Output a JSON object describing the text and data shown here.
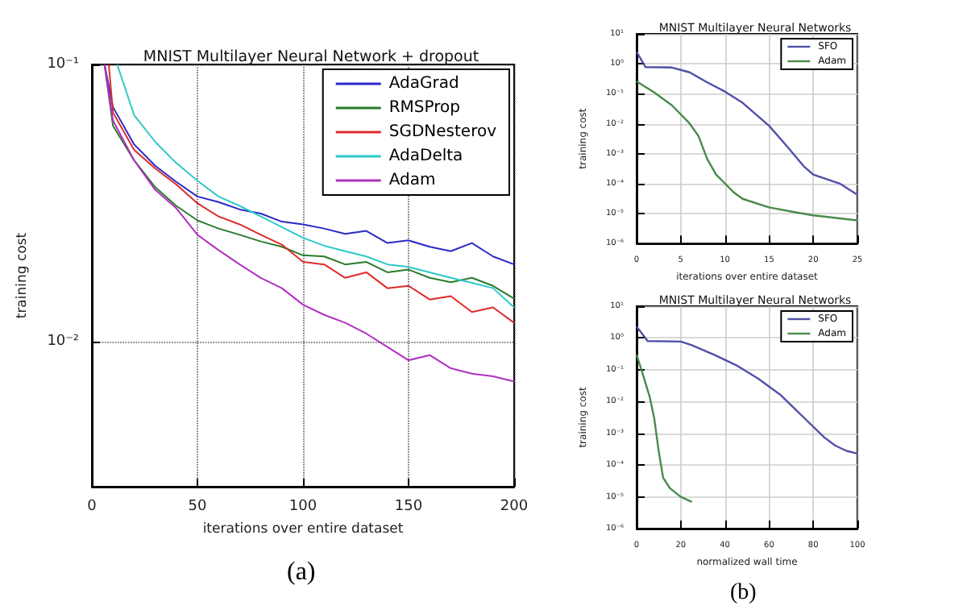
{
  "chart_data": [
    {
      "type": "line",
      "title": "MNIST Multilayer Neural Network + dropout",
      "xlabel": "iterations over entire dataset",
      "ylabel": "training cost",
      "log": "y",
      "grid": true,
      "legend": "top right",
      "xlim": [
        0,
        200
      ],
      "xticks": [
        0,
        50,
        100,
        150,
        200
      ],
      "ylim": [
        0.003,
        0.1
      ],
      "yticks": [
        {
          "value": 0.1,
          "label": "10⁻¹"
        },
        {
          "value": 0.01,
          "label": "10⁻²"
        }
      ],
      "annotations": [
        "(a)"
      ],
      "series": [
        {
          "name": "AdaGrad",
          "color": "#2a2ac8",
          "x": [
            6,
            10,
            20,
            30,
            40,
            50,
            60,
            70,
            80,
            90,
            100,
            110,
            120,
            130,
            140,
            150,
            160,
            170,
            180,
            190,
            200
          ],
          "values": [
            0.1,
            0.0702,
            0.0515,
            0.0431,
            0.0377,
            0.0334,
            0.0319,
            0.03,
            0.029,
            0.0271,
            0.0265,
            0.0256,
            0.0245,
            0.0251,
            0.0227,
            0.0232,
            0.022,
            0.0212,
            0.0227,
            0.0203,
            0.019
          ]
        },
        {
          "name": "RMSProp",
          "color": "#2a7a2a",
          "x": [
            6,
            10,
            20,
            30,
            40,
            50,
            60,
            70,
            80,
            90,
            100,
            110,
            120,
            130,
            140,
            150,
            160,
            170,
            180,
            190,
            200
          ],
          "values": [
            0.1,
            0.0601,
            0.0451,
            0.0361,
            0.0309,
            0.0274,
            0.0256,
            0.0243,
            0.023,
            0.022,
            0.0205,
            0.0203,
            0.019,
            0.0194,
            0.0178,
            0.0182,
            0.017,
            0.0164,
            0.017,
            0.0159,
            0.0143
          ]
        },
        {
          "name": "SGDNesterov",
          "color": "#e02a2a",
          "x": [
            8,
            10,
            20,
            30,
            40,
            50,
            60,
            70,
            80,
            90,
            100,
            110,
            120,
            130,
            140,
            150,
            160,
            170,
            180,
            190,
            200
          ],
          "values": [
            0.1,
            0.0671,
            0.0492,
            0.0422,
            0.0369,
            0.0316,
            0.0283,
            0.0265,
            0.0243,
            0.0224,
            0.0194,
            0.019,
            0.017,
            0.0178,
            0.0156,
            0.0159,
            0.0142,
            0.0146,
            0.0128,
            0.0133,
            0.0117
          ]
        },
        {
          "name": "AdaDelta",
          "color": "#2ec8c8",
          "x": [
            12,
            20,
            30,
            40,
            50,
            60,
            70,
            80,
            90,
            100,
            110,
            120,
            130,
            140,
            150,
            160,
            170,
            180,
            190,
            200
          ],
          "values": [
            0.1,
            0.0657,
            0.0526,
            0.0441,
            0.0381,
            0.0334,
            0.0309,
            0.0283,
            0.0259,
            0.0237,
            0.0222,
            0.0212,
            0.0203,
            0.019,
            0.0186,
            0.0178,
            0.017,
            0.0163,
            0.0156,
            0.0133
          ]
        },
        {
          "name": "Adam",
          "color": "#b030c0",
          "x": [
            6,
            10,
            20,
            30,
            40,
            50,
            60,
            70,
            80,
            90,
            100,
            110,
            120,
            130,
            140,
            150,
            160,
            170,
            180,
            190,
            200
          ],
          "values": [
            0.1,
            0.0628,
            0.0451,
            0.0353,
            0.0303,
            0.0243,
            0.0214,
            0.019,
            0.017,
            0.0156,
            0.0136,
            0.0125,
            0.0117,
            0.0107,
            0.00957,
            0.00857,
            0.00895,
            0.00802,
            0.00767,
            0.0075,
            0.00718
          ]
        }
      ]
    },
    {
      "type": "line",
      "title": "MNIST Multilayer Neural Networks",
      "xlabel": "iterations over entire dataset",
      "ylabel": "training cost",
      "log": "y",
      "grid": true,
      "legend": "top right",
      "xlim": [
        0,
        25
      ],
      "xticks": [
        0,
        5,
        10,
        15,
        20,
        25
      ],
      "ylim": [
        1e-06,
        10
      ],
      "yticks": [
        {
          "value": 10,
          "label": "10¹"
        },
        {
          "value": 1,
          "label": "10⁰"
        },
        {
          "value": 0.1,
          "label": "10⁻¹"
        },
        {
          "value": 0.01,
          "label": "10⁻²"
        },
        {
          "value": 0.001,
          "label": "10⁻³"
        },
        {
          "value": 0.0001,
          "label": "10⁻⁴"
        },
        {
          "value": 1e-05,
          "label": "10⁻⁵"
        },
        {
          "value": 1e-06,
          "label": "10⁻⁶"
        }
      ],
      "series": [
        {
          "name": "SFO",
          "color": "#5050a8",
          "x": [
            0,
            1,
            4,
            6,
            8,
            10,
            12,
            15,
            17,
            19,
            20,
            23,
            25
          ],
          "values": [
            2.5,
            0.78,
            0.75,
            0.52,
            0.24,
            0.118,
            0.05,
            0.0085,
            0.0018,
            0.00036,
            0.0002,
            0.0001,
            4.2e-05
          ]
        },
        {
          "name": "Adam",
          "color": "#4a8a4a",
          "x": [
            0,
            2,
            4,
            6,
            7,
            8,
            9,
            11,
            12,
            15,
            18,
            20,
            25
          ],
          "values": [
            0.26,
            0.11,
            0.041,
            0.0102,
            0.0039,
            0.00066,
            0.0002,
            5.1e-05,
            3.1e-05,
            1.6e-05,
            1.1e-05,
            8.7e-06,
            5.9e-06
          ]
        }
      ]
    },
    {
      "type": "line",
      "title": "MNIST Multilayer Neural Networks",
      "xlabel": "normalized wall time",
      "ylabel": "training cost",
      "log": "y",
      "grid": true,
      "legend": "top right",
      "xlim": [
        0,
        100
      ],
      "xticks": [
        0,
        20,
        40,
        60,
        80,
        100
      ],
      "ylim": [
        1e-06,
        10
      ],
      "yticks": [
        {
          "value": 10,
          "label": "10¹"
        },
        {
          "value": 1,
          "label": "10⁰"
        },
        {
          "value": 0.1,
          "label": "10⁻¹"
        },
        {
          "value": 0.01,
          "label": "10⁻²"
        },
        {
          "value": 0.001,
          "label": "10⁻³"
        },
        {
          "value": 0.0001,
          "label": "10⁻⁴"
        },
        {
          "value": 1e-05,
          "label": "10⁻⁵"
        },
        {
          "value": 1e-06,
          "label": "10⁻⁶"
        }
      ],
      "annotations": [
        "(b)"
      ],
      "series": [
        {
          "name": "SFO",
          "color": "#5050a8",
          "x": [
            0,
            5,
            20,
            25,
            35,
            45,
            55,
            65,
            75,
            85,
            90,
            95,
            100
          ],
          "values": [
            2.3,
            0.8,
            0.77,
            0.59,
            0.3,
            0.14,
            0.053,
            0.0165,
            0.0035,
            0.00074,
            0.00041,
            0.00028,
            0.00023
          ]
        },
        {
          "name": "Adam",
          "color": "#4a8a4a",
          "x": [
            0,
            3,
            6,
            8,
            10,
            12,
            15,
            20,
            25
          ],
          "values": [
            0.3,
            0.065,
            0.0135,
            0.0029,
            0.00028,
            4e-05,
            1.9e-05,
            1e-05,
            6.9e-06
          ]
        }
      ]
    }
  ]
}
